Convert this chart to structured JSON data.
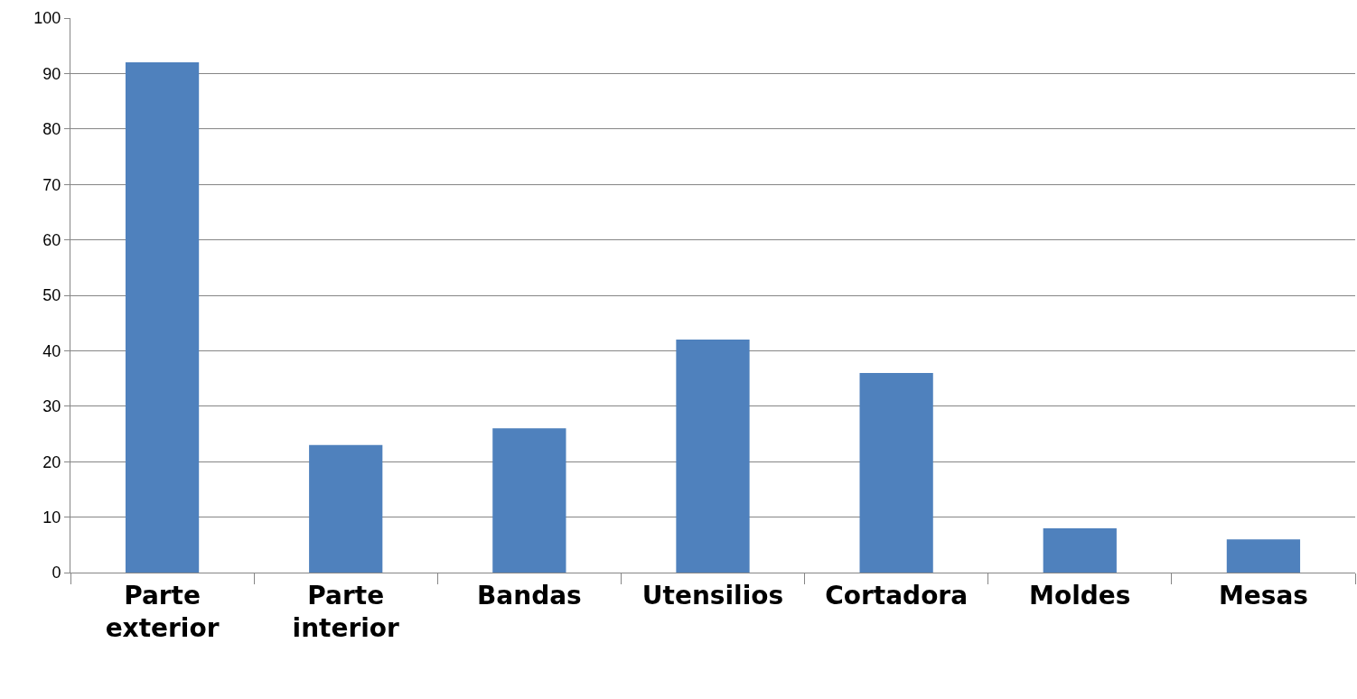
{
  "chart_data": {
    "type": "bar",
    "categories": [
      "Parte exterior",
      "Parte interior",
      "Bandas",
      "Utensilios",
      "Cortadora",
      "Moldes",
      "Mesas"
    ],
    "values": [
      92,
      23,
      26,
      42,
      36,
      8,
      6
    ],
    "color": "#4f81bd",
    "ylim": [
      0,
      100
    ],
    "yticks": [
      0,
      10,
      20,
      30,
      40,
      50,
      60,
      70,
      80,
      90,
      100
    ],
    "grid": "y"
  }
}
